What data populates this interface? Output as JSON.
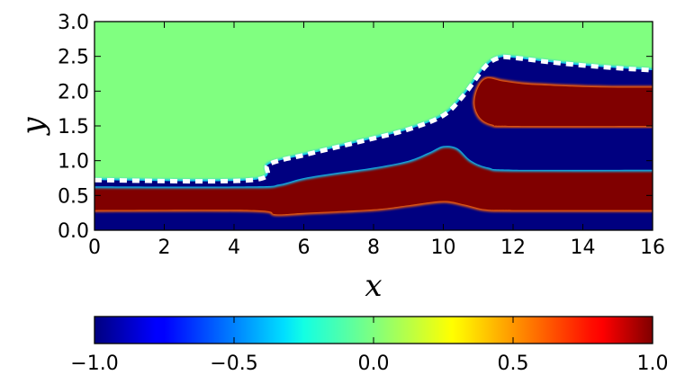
{
  "chart_data": {
    "type": "heatmap",
    "title": "",
    "xlabel": "x",
    "ylabel": "y",
    "xlim": [
      0,
      16
    ],
    "ylim": [
      0,
      3
    ],
    "xticks": [
      0,
      2,
      4,
      6,
      8,
      10,
      12,
      14,
      16
    ],
    "yticks": [
      0.0,
      0.5,
      1.0,
      1.5,
      2.0,
      2.5,
      3.0
    ],
    "xtick_labels": [
      "0",
      "2",
      "4",
      "6",
      "8",
      "10",
      "12",
      "14",
      "16"
    ],
    "ytick_labels": [
      "0.0",
      "0.5",
      "1.0",
      "1.5",
      "2.0",
      "2.5",
      "3.0"
    ],
    "field_outside_value": 0.0,
    "interface": {
      "style": "dashed",
      "color": "#ffffff",
      "points": [
        [
          0,
          0.72
        ],
        [
          4.5,
          0.72
        ],
        [
          5.0,
          0.95
        ],
        [
          6,
          1.08
        ],
        [
          7,
          1.2
        ],
        [
          8,
          1.32
        ],
        [
          9,
          1.45
        ],
        [
          10,
          1.65
        ],
        [
          10.6,
          1.95
        ],
        [
          11.2,
          2.35
        ],
        [
          11.6,
          2.48
        ],
        [
          12,
          2.48
        ],
        [
          13,
          2.42
        ],
        [
          14,
          2.37
        ],
        [
          15,
          2.33
        ],
        [
          16,
          2.3
        ]
      ]
    },
    "layers": [
      {
        "value": -1.0,
        "name": "",
        "bottom": [
          [
            0,
            0.0
          ],
          [
            16,
            0.0
          ]
        ],
        "top": [
          [
            0,
            0.29
          ],
          [
            4.5,
            0.29
          ],
          [
            5.2,
            0.23
          ],
          [
            6,
            0.25
          ],
          [
            8,
            0.3
          ],
          [
            9,
            0.36
          ],
          [
            10,
            0.42
          ],
          [
            10.6,
            0.37
          ],
          [
            11.2,
            0.3
          ],
          [
            12,
            0.29
          ],
          [
            16,
            0.29
          ]
        ]
      },
      {
        "value": 1.0,
        "name": "",
        "bottom": [
          [
            0,
            0.29
          ],
          [
            4.5,
            0.29
          ],
          [
            5.2,
            0.23
          ],
          [
            6,
            0.25
          ],
          [
            8,
            0.3
          ],
          [
            9,
            0.36
          ],
          [
            10,
            0.42
          ],
          [
            10.6,
            0.37
          ],
          [
            11.2,
            0.3
          ],
          [
            12,
            0.29
          ],
          [
            16,
            0.29
          ]
        ],
        "top": [
          [
            0,
            0.63
          ],
          [
            4.5,
            0.63
          ],
          [
            5.3,
            0.66
          ],
          [
            6,
            0.75
          ],
          [
            7,
            0.83
          ],
          [
            8,
            0.9
          ],
          [
            9,
            1.0
          ],
          [
            9.6,
            1.12
          ],
          [
            10,
            1.21
          ],
          [
            10.4,
            1.18
          ],
          [
            10.8,
            1.0
          ],
          [
            11.3,
            0.9
          ],
          [
            12,
            0.87
          ],
          [
            16,
            0.87
          ]
        ]
      },
      {
        "value": -1.0,
        "name": "",
        "bottom": [
          [
            0,
            0.63
          ],
          [
            4.5,
            0.63
          ],
          [
            5.3,
            0.66
          ],
          [
            6,
            0.75
          ],
          [
            7,
            0.83
          ],
          [
            8,
            0.9
          ],
          [
            9,
            1.0
          ],
          [
            9.6,
            1.12
          ],
          [
            10,
            1.21
          ],
          [
            10.4,
            1.18
          ],
          [
            10.8,
            1.0
          ],
          [
            11.3,
            0.9
          ],
          [
            12,
            0.87
          ],
          [
            16,
            0.87
          ]
        ],
        "top": [
          [
            0,
            0.72
          ],
          [
            4.5,
            0.72
          ],
          [
            5.0,
            0.95
          ],
          [
            6,
            1.08
          ],
          [
            7,
            1.2
          ],
          [
            8,
            1.32
          ],
          [
            9,
            1.45
          ],
          [
            10,
            1.65
          ],
          [
            10.6,
            1.95
          ],
          [
            11.2,
            2.35
          ],
          [
            11.6,
            2.48
          ],
          [
            12,
            2.48
          ],
          [
            13,
            2.42
          ],
          [
            14,
            2.37
          ],
          [
            15,
            2.33
          ],
          [
            16,
            2.3
          ]
        ]
      },
      {
        "value": 1.0,
        "name": "",
        "blob": [
          [
            16,
            1.5
          ],
          [
            12,
            1.5
          ],
          [
            11.4,
            1.52
          ],
          [
            11.05,
            1.62
          ],
          [
            10.9,
            1.82
          ],
          [
            11.0,
            2.05
          ],
          [
            11.25,
            2.18
          ],
          [
            11.7,
            2.14
          ],
          [
            12.3,
            2.1
          ],
          [
            13,
            2.08
          ],
          [
            14,
            2.06
          ],
          [
            15,
            2.05
          ],
          [
            16,
            2.05
          ]
        ]
      }
    ],
    "colorbar": {
      "colormap": "jet",
      "range": [
        -1.0,
        1.0
      ],
      "ticks": [
        -1.0,
        -0.5,
        0.0,
        0.5,
        1.0
      ],
      "tick_labels": [
        "−1.0",
        "−0.5",
        "0.0",
        "0.5",
        "1.0"
      ],
      "placement": "bottom"
    },
    "colors": {
      "value_minus_1": "#00008f",
      "value_0": "#7fff7f",
      "value_plus_1": "#800000",
      "interface_line": "#ffffff"
    }
  }
}
